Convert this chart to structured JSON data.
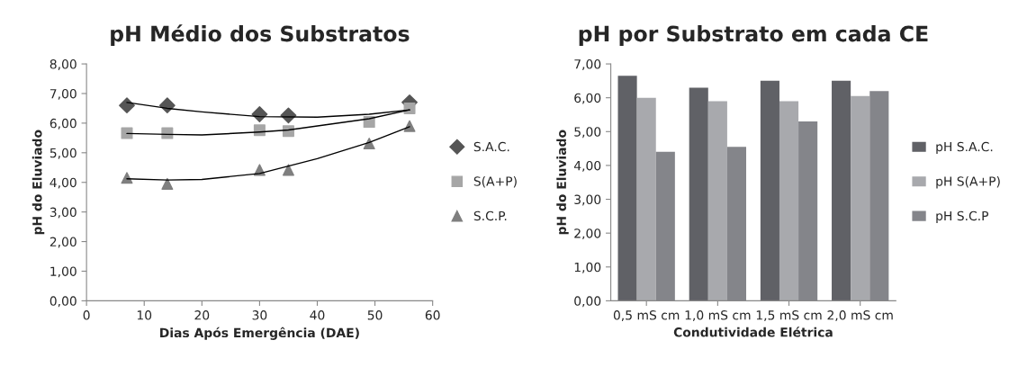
{
  "chart_data": [
    {
      "type": "scatter",
      "title": "pH Médio dos Substratos",
      "xlabel": "Dias Após Emergência (DAE)",
      "ylabel": "pH do Eluviado",
      "xlim": [
        0,
        60
      ],
      "xticks": [
        0,
        10,
        20,
        30,
        40,
        50,
        60
      ],
      "ylim": [
        0,
        8
      ],
      "yticks": [
        {
          "value": 0,
          "label": "0,00"
        },
        {
          "value": 1,
          "label": "1,00"
        },
        {
          "value": 2,
          "label": "2,00"
        },
        {
          "value": 3,
          "label": "3,00"
        },
        {
          "value": 4,
          "label": "4,00"
        },
        {
          "value": 5,
          "label": "5,00"
        },
        {
          "value": 6,
          "label": "6,00"
        },
        {
          "value": 7,
          "label": "7,00"
        },
        {
          "value": 8,
          "label": "8,00"
        }
      ],
      "grid": false,
      "legend": "right",
      "series": [
        {
          "name": "S.A.C.",
          "color": "#555555",
          "marker": "diamond",
          "x": [
            7,
            14,
            30,
            35,
            56
          ],
          "values": [
            6.6,
            6.6,
            6.3,
            6.26,
            6.7
          ]
        },
        {
          "name": "S(A+P)",
          "color": "#a6a6a6",
          "marker": "square",
          "x": [
            7,
            14,
            30,
            35,
            49,
            56
          ],
          "values": [
            5.66,
            5.66,
            5.76,
            5.73,
            6.04,
            6.5
          ]
        },
        {
          "name": "S.C.P.",
          "color": "#7f7f7f",
          "marker": "triangle",
          "x": [
            7,
            14,
            30,
            35,
            49,
            56
          ],
          "values": [
            4.15,
            3.95,
            4.42,
            4.42,
            5.31,
            5.9
          ]
        },
        {
          "type": "line",
          "color": "#000000",
          "marker": "none",
          "x": [
            7,
            14,
            20,
            30,
            40,
            49,
            56
          ],
          "values": [
            6.7,
            6.5,
            6.38,
            6.22,
            6.2,
            6.3,
            6.45
          ]
        },
        {
          "type": "line",
          "color": "#000000",
          "marker": "none",
          "x": [
            7,
            14,
            20,
            30,
            35,
            49,
            56
          ],
          "values": [
            5.65,
            5.62,
            5.6,
            5.7,
            5.77,
            6.15,
            6.45
          ]
        },
        {
          "type": "line",
          "color": "#000000",
          "marker": "none",
          "x": [
            7,
            14,
            20,
            30,
            40,
            49,
            56
          ],
          "values": [
            4.12,
            4.08,
            4.1,
            4.3,
            4.8,
            5.35,
            5.88
          ]
        }
      ]
    },
    {
      "type": "bar",
      "title": "pH por Substrato em cada CE",
      "xlabel": "Condutividade Elétrica",
      "ylabel": "pH do Eluviado",
      "categories": [
        "0,5 mS cm",
        "1,0 mS cm",
        "1,5 mS cm",
        "2,0 mS cm"
      ],
      "ylim": [
        0,
        7
      ],
      "yticks": [
        {
          "value": 0,
          "label": "0,00"
        },
        {
          "value": 1,
          "label": "1,00"
        },
        {
          "value": 2,
          "label": "2,00"
        },
        {
          "value": 3,
          "label": "3,00"
        },
        {
          "value": 4,
          "label": "4,00"
        },
        {
          "value": 5,
          "label": "5,00"
        },
        {
          "value": 6,
          "label": "6,00"
        },
        {
          "value": 7,
          "label": "7,00"
        }
      ],
      "grid": false,
      "legend": "right",
      "series": [
        {
          "name": "pH S.A.C.",
          "color": "#606166",
          "values": [
            6.65,
            6.3,
            6.5,
            6.5
          ]
        },
        {
          "name": "pH S(A+P)",
          "color": "#a8a9ad",
          "values": [
            6.0,
            5.9,
            5.9,
            6.05
          ]
        },
        {
          "name": "pH S.C.P",
          "color": "#84858a",
          "values": [
            4.4,
            4.55,
            5.3,
            6.2
          ]
        }
      ]
    }
  ]
}
